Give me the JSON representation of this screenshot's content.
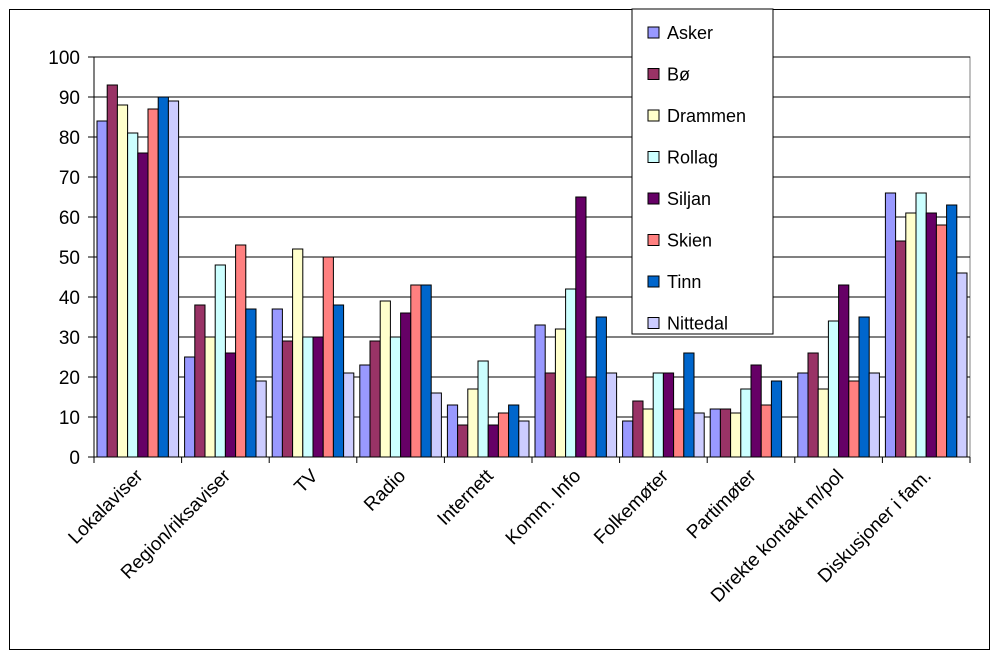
{
  "chart_data": {
    "type": "bar",
    "categories": [
      "Lokalaviser",
      "Region/riksaviser",
      "TV",
      "Radio",
      "Internett",
      "Komm. Info",
      "Folkemøter",
      "Partimøter",
      "Direkte kontakt m/pol",
      "Diskusjoner i fam."
    ],
    "series": [
      {
        "name": "Asker",
        "color": "#9999ff",
        "values": [
          84,
          25,
          37,
          23,
          13,
          33,
          9,
          12,
          21,
          66
        ]
      },
      {
        "name": "Bø",
        "color": "#993366",
        "values": [
          93,
          38,
          29,
          29,
          8,
          21,
          14,
          12,
          26,
          54
        ]
      },
      {
        "name": "Drammen",
        "color": "#ffffcc",
        "values": [
          88,
          30,
          52,
          39,
          17,
          32,
          12,
          11,
          17,
          61
        ]
      },
      {
        "name": "Rollag",
        "color": "#ccffff",
        "values": [
          81,
          48,
          30,
          30,
          24,
          42,
          21,
          17,
          34,
          66
        ]
      },
      {
        "name": "Siljan",
        "color": "#660066",
        "values": [
          76,
          26,
          30,
          36,
          8,
          65,
          21,
          23,
          43,
          61
        ]
      },
      {
        "name": "Skien",
        "color": "#ff8080",
        "values": [
          87,
          53,
          50,
          43,
          11,
          20,
          12,
          13,
          19,
          58
        ]
      },
      {
        "name": "Tinn",
        "color": "#0066cc",
        "values": [
          90,
          37,
          38,
          43,
          13,
          35,
          26,
          19,
          35,
          63
        ]
      },
      {
        "name": "Nittedal",
        "color": "#ccccff",
        "values": [
          89,
          19,
          21,
          16,
          9,
          21,
          11,
          null,
          21,
          46
        ]
      }
    ],
    "ylim": [
      0,
      100
    ],
    "yticks": [
      "0",
      "10",
      "20",
      "30",
      "40",
      "50",
      "60",
      "70",
      "80",
      "90",
      "100"
    ],
    "grid": true,
    "legend": "top-right"
  }
}
